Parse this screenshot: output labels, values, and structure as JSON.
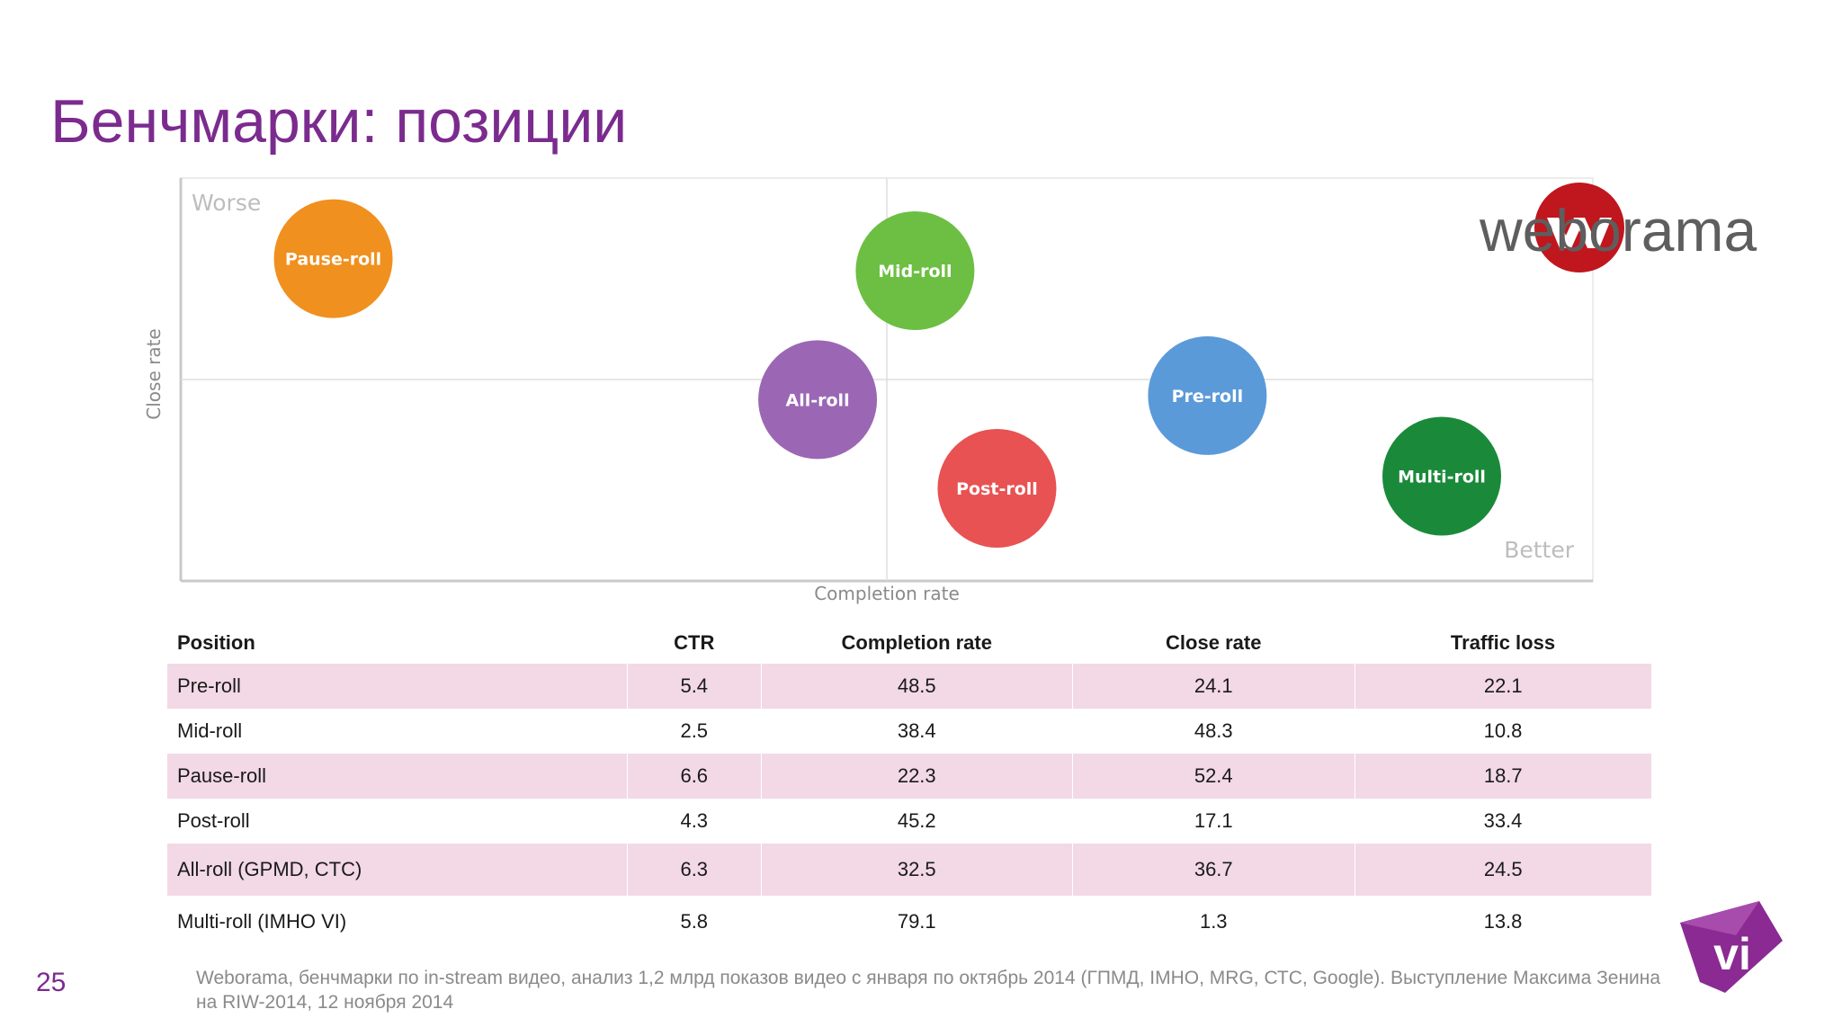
{
  "slide": {
    "title": "Бенчмарки: позиции",
    "page_number": "25",
    "source_note": "Weborama, бенчмарки по in-stream видео, анализ 1,2 млрд показов видео с января по октябрь 2014 (ГПМД, IMHO, MRG, СТС, Google). Выступление Максима Зенина на RIW-2014, 12 ноября 2014"
  },
  "logos": {
    "weborama_text": "weborama",
    "weborama_mark": "w",
    "vi_mark": "vi"
  },
  "chart_data": {
    "type": "scatter",
    "xlabel": "Completion rate",
    "ylabel": "Close rate",
    "corner_top_left": "Worse",
    "corner_bottom_right": "Better",
    "xlim": [
      0,
      1
    ],
    "ylim": [
      0,
      1
    ],
    "quadrant_lines": {
      "x": 0.5,
      "y": 0.5
    },
    "grid": false,
    "points": [
      {
        "label": "Pause-roll",
        "x": 0.108,
        "y": 0.8,
        "color": "#f0901e"
      },
      {
        "label": "Mid-roll",
        "x": 0.52,
        "y": 0.77,
        "color": "#6cbf42"
      },
      {
        "label": "All-roll",
        "x": 0.451,
        "y": 0.45,
        "color": "#9b67b4"
      },
      {
        "label": "Post-roll",
        "x": 0.578,
        "y": 0.23,
        "color": "#e85252"
      },
      {
        "label": "Pre-roll",
        "x": 0.727,
        "y": 0.46,
        "color": "#5b9ad9"
      },
      {
        "label": "Multi-roll",
        "x": 0.893,
        "y": 0.26,
        "color": "#1a8a3a"
      }
    ]
  },
  "table": {
    "headers": [
      "Position",
      "CTR",
      "Completion rate",
      "Close rate",
      "Traffic loss"
    ],
    "rows": [
      [
        "Pre-roll",
        "5.4",
        "48.5",
        "24.1",
        "22.1"
      ],
      [
        "Mid-roll",
        "2.5",
        "38.4",
        "48.3",
        "10.8"
      ],
      [
        "Pause-roll",
        "6.6",
        "22.3",
        "52.4",
        "18.7"
      ],
      [
        "Post-roll",
        "4.3",
        "45.2",
        "17.1",
        "33.4"
      ],
      [
        "All-roll (GPMD, CTC)",
        "6.3",
        "32.5",
        "36.7",
        "24.5"
      ],
      [
        "Multi-roll (IMHO VI)",
        "5.8",
        "79.1",
        "1.3",
        "13.8"
      ]
    ]
  }
}
